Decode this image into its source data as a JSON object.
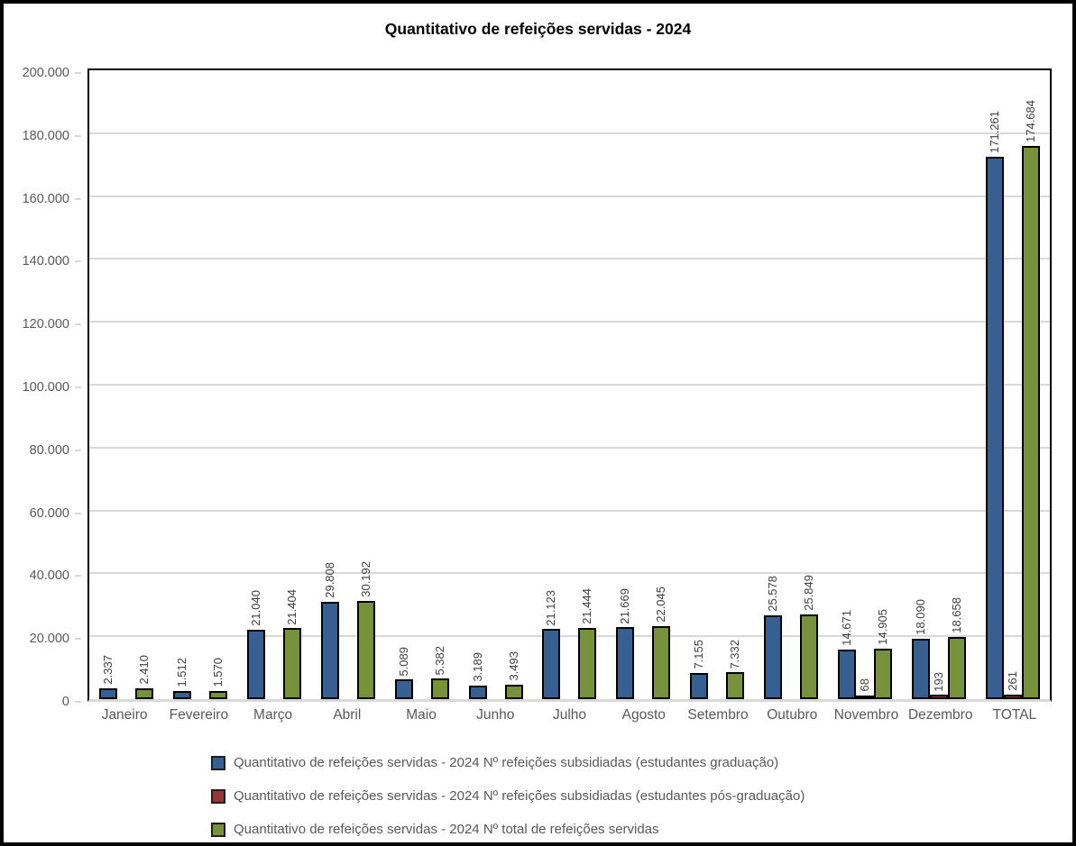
{
  "chart_data": {
    "type": "bar",
    "title": "Quantitativo de refeições servidas - 2024",
    "categories": [
      "Janeiro",
      "Fevereiro",
      "Março",
      "Abril",
      "Maio",
      "Junho",
      "Julho",
      "Agosto",
      "Setembro",
      "Outubro",
      "Novembro",
      "Dezembro",
      "TOTAL"
    ],
    "series": [
      {
        "name": "Quantitativo de refeições servidas - 2024 Nº refeições subsidiadas (estudantes graduação)",
        "color": "#376092",
        "values": [
          2337,
          1512,
          21040,
          29808,
          5089,
          3189,
          21123,
          21669,
          7155,
          25578,
          14671,
          18090,
          171261
        ]
      },
      {
        "name": "Quantitativo de refeições servidas - 2024 Nº refeições subsidiadas (estudantes pós-graduação)",
        "color": "#953735",
        "values": [
          0,
          0,
          0,
          0,
          0,
          0,
          0,
          0,
          0,
          0,
          68,
          193,
          261
        ]
      },
      {
        "name": "Quantitativo de refeições servidas - 2024 Nº total de refeições servidas",
        "color": "#76933C",
        "values": [
          2410,
          1570,
          21404,
          30192,
          5382,
          3493,
          21444,
          22045,
          7332,
          25849,
          14905,
          18658,
          174684
        ]
      }
    ],
    "ylim": [
      0,
      200000
    ],
    "ytick_step": 20000,
    "ytick_labels": [
      "0",
      "20.000",
      "40.000",
      "60.000",
      "80.000",
      "100.000",
      "120.000",
      "140.000",
      "160.000",
      "180.000",
      "200.000"
    ],
    "grid": true,
    "legend_position": "bottom",
    "xlabel": "",
    "ylabel": "",
    "bar_border_color": "#000000",
    "gridline_color": "#D9D9D9",
    "axis_text_color": "#595959",
    "data_label_color": "#404040"
  }
}
